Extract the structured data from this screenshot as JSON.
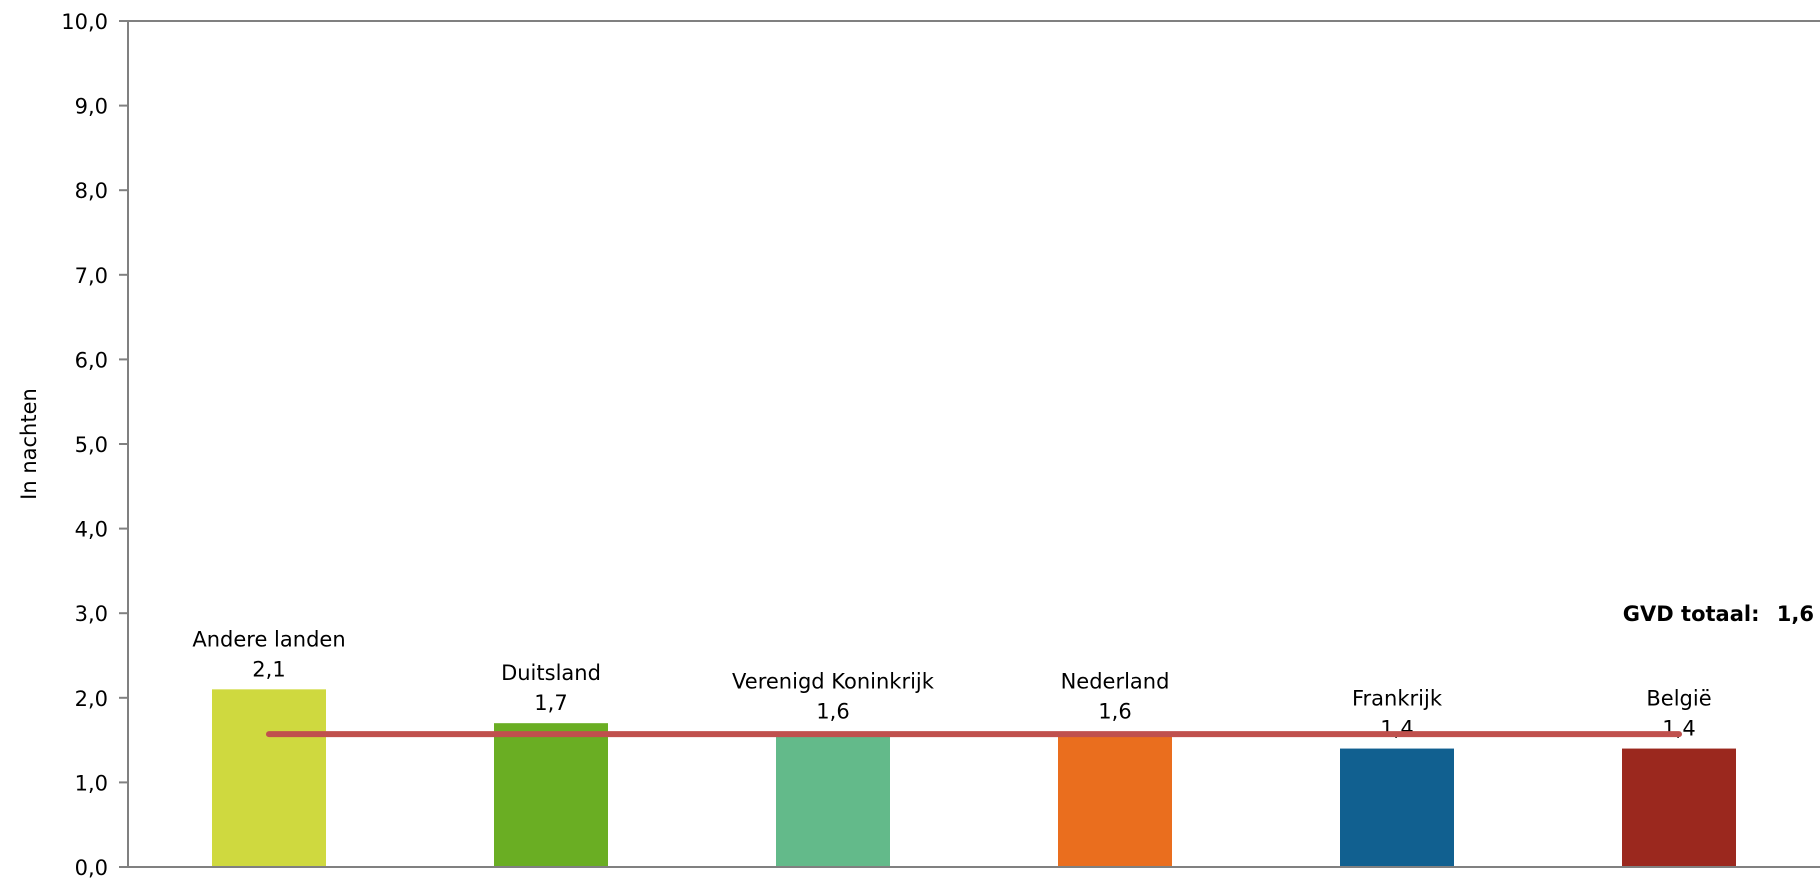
{
  "chart_data": {
    "type": "bar",
    "categories": [
      "Andere landen",
      "Duitsland",
      "Verenigd Koninkrijk",
      "Nederland",
      "Frankrijk",
      "België"
    ],
    "values": [
      2.1,
      1.7,
      1.6,
      1.6,
      1.4,
      1.4
    ],
    "value_labels": [
      "2,1",
      "1,7",
      "1,6",
      "1,6",
      "1,4",
      "1,4"
    ],
    "colors": [
      "#cfd93f",
      "#6aae23",
      "#63ba8a",
      "#ea6e1e",
      "#116090",
      "#9b281e"
    ],
    "ylabel": "In nachten",
    "ylim": [
      0,
      10
    ],
    "yticks": [
      0,
      1,
      2,
      3,
      4,
      5,
      6,
      7,
      8,
      9,
      10
    ],
    "ytick_labels": [
      "0,0",
      "1,0",
      "2,0",
      "3,0",
      "4,0",
      "5,0",
      "6,0",
      "7,0",
      "8,0",
      "9,0",
      "10,0"
    ],
    "reference_line": {
      "label": "GVD totaal:",
      "value_label": "1,6",
      "value": 1.57,
      "color": "#c0504d"
    },
    "grid": false,
    "legend": "none"
  }
}
